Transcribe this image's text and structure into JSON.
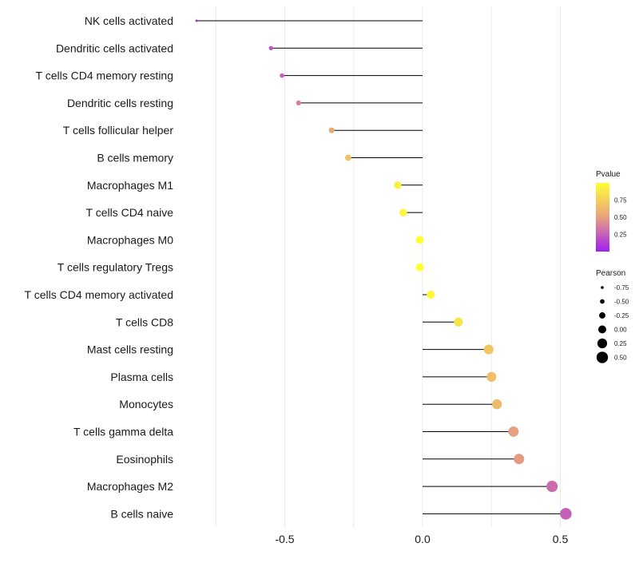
{
  "chart_data": {
    "type": "lollipop",
    "title": "",
    "xlabel": "",
    "ylabel": "",
    "xlim": [
      -0.92,
      0.53
    ],
    "xticks": [
      -0.5,
      0.0,
      0.5
    ],
    "xtick_labels": [
      "-0.5",
      "0.0",
      "0.5"
    ],
    "grid": true,
    "categories": [
      "NK cells activated",
      "Dendritic cells activated",
      "T cells CD4 memory resting",
      "Dendritic cells resting",
      "T cells follicular helper",
      "B cells memory",
      "Macrophages M1",
      "T cells CD4 naive",
      "Macrophages M0",
      "T cells regulatory  Tregs ",
      "T cells CD4 memory activated",
      "T cells CD8",
      "Mast cells resting",
      "Plasma cells",
      "Monocytes",
      "T cells gamma delta",
      "Eosinophils",
      "Macrophages M2",
      "B cells naive"
    ],
    "pearson": [
      -0.82,
      -0.55,
      -0.51,
      -0.45,
      -0.33,
      -0.27,
      -0.09,
      -0.07,
      -0.01,
      -0.01,
      0.03,
      0.13,
      0.24,
      0.25,
      0.27,
      0.33,
      0.35,
      0.47,
      0.52
    ],
    "pvalue": [
      0.03,
      0.2,
      0.25,
      0.38,
      0.55,
      0.68,
      0.92,
      0.95,
      1.0,
      1.0,
      0.95,
      0.85,
      0.7,
      0.66,
      0.63,
      0.5,
      0.48,
      0.3,
      0.25
    ],
    "legend": {
      "color": {
        "title": "Pvalue",
        "breaks": [
          0.75,
          0.5,
          0.25
        ],
        "labels": [
          "0.75",
          "0.50",
          "0.25"
        ],
        "range": [
          0,
          1
        ],
        "low_color": "#a020f0",
        "mid_color": "#e8a080",
        "high_color": "#ffff33"
      },
      "size": {
        "title": "Pearson",
        "breaks": [
          -0.75,
          -0.5,
          -0.25,
          0.0,
          0.25,
          0.5
        ],
        "labels": [
          "-0.75",
          "-0.50",
          "-0.25",
          "0.00",
          "0.25",
          "0.50"
        ]
      },
      "placement": "right"
    }
  }
}
